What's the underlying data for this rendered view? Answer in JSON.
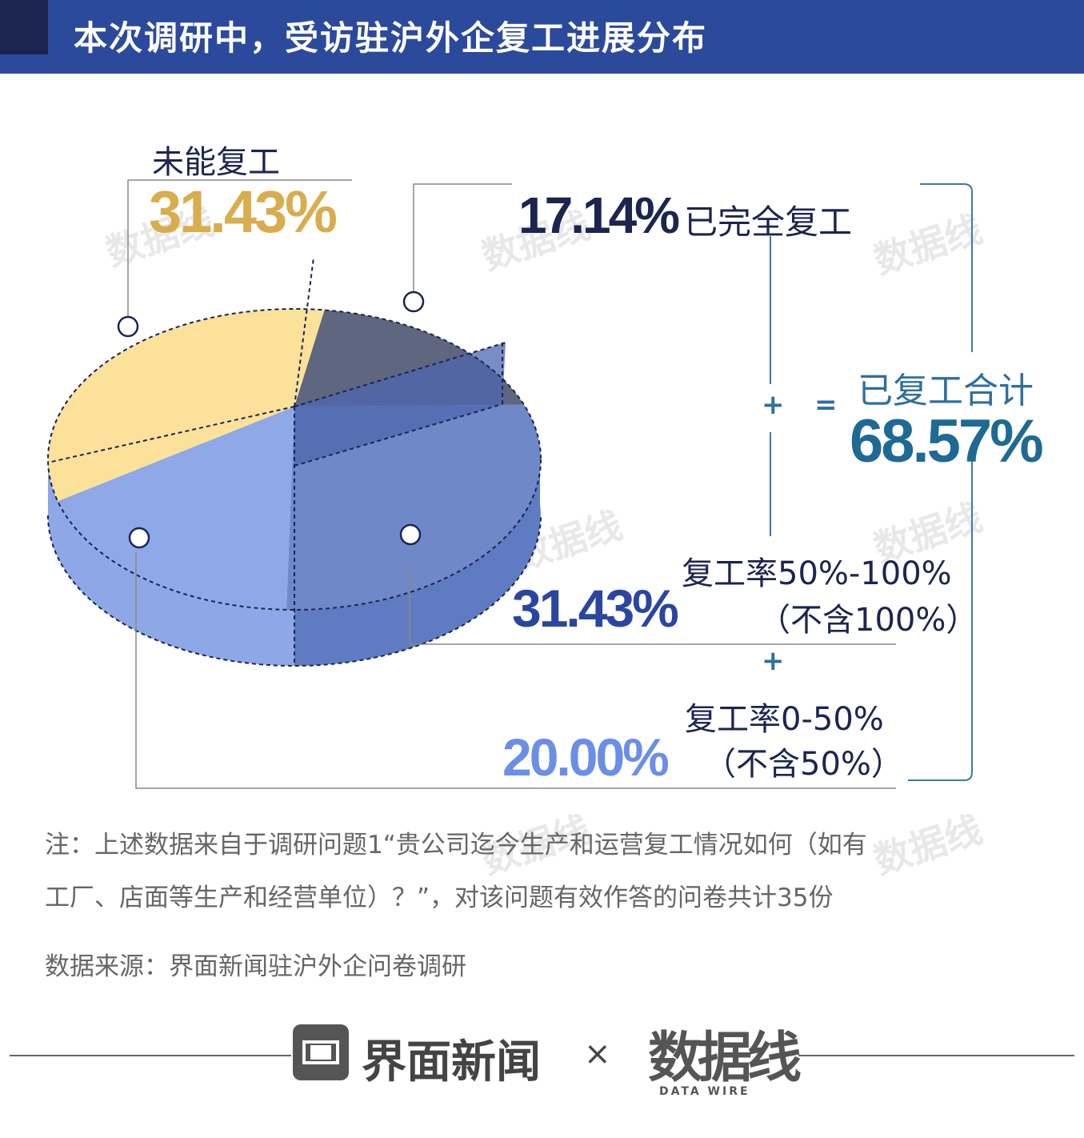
{
  "header": {
    "title": "本次调研中，受访驻沪外企复工进展分布"
  },
  "chart_data": {
    "type": "pie",
    "unit": "%",
    "slices": [
      {
        "label": "已完全复工",
        "value": 17.14,
        "display": "17.14%",
        "color": "#5e6680"
      },
      {
        "label": "复工率50%-100%",
        "sublabel": "（不含100%）",
        "value": 31.43,
        "display": "31.43%",
        "color": "#6f88c8"
      },
      {
        "label": "复工率0-50%",
        "sublabel": "（不含50%）",
        "value": 20.0,
        "display": "20.00%",
        "color": "#8fa8e8"
      },
      {
        "label": "未能复工",
        "value": 31.43,
        "display": "31.43%",
        "color": "#fbe19a"
      }
    ],
    "total": {
      "label": "已复工合计",
      "value": 68.57,
      "display": "68.57%",
      "color": "#1f6a94"
    },
    "operators": {
      "plus": "+",
      "equals": "="
    }
  },
  "notes": {
    "note_line1": "注：上述数据来自于调研问题1“贵公司迄今生产和运营复工情况如何（如有",
    "note_line2": "工厂、店面等生产和经营单位）？”，对该问题有效作答的问卷共计35份",
    "source": "数据来源：界面新闻驻沪外企问卷调研"
  },
  "footer": {
    "brand1": "界面新闻",
    "times": "×",
    "brand2": "数据线",
    "brand2_sub": "DATA WIRE"
  },
  "watermark": {
    "text": "数据线",
    "sub": "DATA WIRE"
  }
}
